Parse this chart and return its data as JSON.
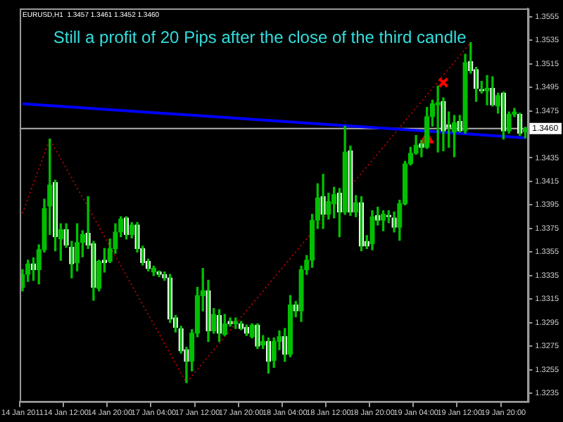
{
  "chart_data": {
    "type": "candlestick",
    "title": "Still a profit of 20 Pips after the close of the third candle",
    "annotations": [
      "EURUSD,H1  1.3457 1.3461 1.3452 1.3460"
    ],
    "categories": [
      "14 Jan 2011",
      null,
      null,
      null,
      null,
      null,
      null,
      null,
      "14 Jan 12:00",
      null,
      null,
      null,
      null,
      null,
      null,
      null,
      "14 Jan 20:00",
      null,
      null,
      null,
      null,
      null,
      null,
      null,
      "17 Jan 04:00",
      null,
      null,
      null,
      null,
      null,
      null,
      null,
      "17 Jan 12:00",
      null,
      null,
      null,
      null,
      null,
      null,
      null,
      "17 Jan 20:00",
      null,
      null,
      null,
      null,
      null,
      null,
      null,
      "18 Jan 04:00",
      null,
      null,
      null,
      null,
      null,
      null,
      null,
      "18 Jan 12:00",
      null,
      null,
      null,
      null,
      null,
      null,
      null,
      "18 Jan 20:00",
      null,
      null,
      null,
      null,
      null,
      null,
      null,
      "19 Jan 04:00",
      null,
      null,
      null,
      null,
      null,
      null,
      null,
      "19 Jan 12:00",
      null,
      null,
      null,
      null,
      null,
      null,
      null,
      "19 Jan 20:00",
      null,
      null,
      null,
      null
    ],
    "ohlc": [
      [
        1.3325,
        1.334,
        1.3322,
        1.3336
      ],
      [
        1.3336,
        1.3348,
        1.333,
        1.3345
      ],
      [
        1.3345,
        1.335,
        1.3331,
        1.334
      ],
      [
        1.334,
        1.3361,
        1.3328,
        1.3357
      ],
      [
        1.3357,
        1.34,
        1.3355,
        1.3392
      ],
      [
        1.3394,
        1.3451,
        1.337,
        1.3412
      ],
      [
        1.3414,
        1.3416,
        1.3356,
        1.3368
      ],
      [
        1.3366,
        1.3379,
        1.3348,
        1.3374
      ],
      [
        1.3374,
        1.3379,
        1.3359,
        1.3361
      ],
      [
        1.3359,
        1.3364,
        1.3333,
        1.3345
      ],
      [
        1.3346,
        1.3379,
        1.3339,
        1.3363
      ],
      [
        1.3363,
        1.3373,
        1.3351,
        1.337
      ],
      [
        1.3371,
        1.3402,
        1.3358,
        1.3361
      ],
      [
        1.3362,
        1.3364,
        1.3314,
        1.3325
      ],
      [
        1.3324,
        1.3348,
        1.3322,
        1.3347
      ],
      [
        1.3348,
        1.3358,
        1.3338,
        1.3346
      ],
      [
        1.3347,
        1.3366,
        1.3346,
        1.3358
      ],
      [
        1.3358,
        1.3379,
        1.3354,
        1.3372
      ],
      [
        1.3372,
        1.3385,
        1.3368,
        1.3383
      ],
      [
        1.3384,
        1.3385,
        1.3366,
        1.337
      ],
      [
        1.337,
        1.338,
        1.3367,
        1.3378
      ],
      [
        1.3378,
        1.338,
        1.3355,
        1.3358
      ],
      [
        1.3358,
        1.336,
        1.3344,
        1.3346
      ],
      [
        1.3347,
        1.3349,
        1.3339,
        1.3341
      ],
      [
        1.3338,
        1.3343,
        1.3335,
        1.3341
      ],
      [
        1.3338,
        1.3339,
        1.3334,
        1.3336
      ],
      [
        1.3336,
        1.3338,
        1.3331,
        1.3333
      ],
      [
        1.3333,
        1.3336,
        1.3295,
        1.3298
      ],
      [
        1.3299,
        1.3301,
        1.3287,
        1.3291
      ],
      [
        1.329,
        1.3292,
        1.3269,
        1.3271
      ],
      [
        1.3272,
        1.3274,
        1.3244,
        1.3262
      ],
      [
        1.3262,
        1.3289,
        1.3254,
        1.3286
      ],
      [
        1.3286,
        1.3325,
        1.3283,
        1.3318
      ],
      [
        1.3318,
        1.3341,
        1.3305,
        1.3322
      ],
      [
        1.3322,
        1.3331,
        1.3279,
        1.3288
      ],
      [
        1.3288,
        1.3307,
        1.3286,
        1.3302
      ],
      [
        1.3301,
        1.3306,
        1.3279,
        1.3286
      ],
      [
        1.3285,
        1.3302,
        1.3284,
        1.3294
      ],
      [
        1.3296,
        1.3299,
        1.3292,
        1.3294
      ],
      [
        1.3294,
        1.3299,
        1.329,
        1.3296
      ],
      [
        1.3294,
        1.3296,
        1.3289,
        1.329
      ],
      [
        1.3291,
        1.3293,
        1.3284,
        1.3286
      ],
      [
        1.3283,
        1.3294,
        1.3282,
        1.3293
      ],
      [
        1.3293,
        1.3294,
        1.3273,
        1.3275
      ],
      [
        1.3276,
        1.3284,
        1.3273,
        1.3279
      ],
      [
        1.3279,
        1.3282,
        1.3252,
        1.3262
      ],
      [
        1.3263,
        1.3282,
        1.3257,
        1.3279
      ],
      [
        1.3279,
        1.3288,
        1.3272,
        1.3283
      ],
      [
        1.3283,
        1.329,
        1.3262,
        1.3268
      ],
      [
        1.3268,
        1.3318,
        1.3266,
        1.331
      ],
      [
        1.331,
        1.3313,
        1.33,
        1.3305
      ],
      [
        1.3305,
        1.3343,
        1.3296,
        1.334
      ],
      [
        1.334,
        1.3352,
        1.3336,
        1.3348
      ],
      [
        1.3348,
        1.3387,
        1.3342,
        1.3382
      ],
      [
        1.3382,
        1.3413,
        1.3375,
        1.3401
      ],
      [
        1.3402,
        1.3421,
        1.3375,
        1.3387
      ],
      [
        1.3387,
        1.3405,
        1.3383,
        1.3398
      ],
      [
        1.3396,
        1.341,
        1.3384,
        1.3404
      ],
      [
        1.3405,
        1.3409,
        1.3368,
        1.3389
      ],
      [
        1.3389,
        1.3462,
        1.3387,
        1.344
      ],
      [
        1.3441,
        1.3445,
        1.3386,
        1.3389
      ],
      [
        1.3389,
        1.3403,
        1.3385,
        1.3397
      ],
      [
        1.3397,
        1.3402,
        1.3356,
        1.336
      ],
      [
        1.3364,
        1.3369,
        1.3358,
        1.336
      ],
      [
        1.3362,
        1.339,
        1.3357,
        1.3385
      ],
      [
        1.3386,
        1.3393,
        1.3378,
        1.3382
      ],
      [
        1.3382,
        1.339,
        1.3373,
        1.3387
      ],
      [
        1.3386,
        1.339,
        1.338,
        1.3385
      ],
      [
        1.3384,
        1.3389,
        1.3372,
        1.3376
      ],
      [
        1.3376,
        1.3399,
        1.3365,
        1.3396
      ],
      [
        1.3396,
        1.3432,
        1.3395,
        1.343
      ],
      [
        1.343,
        1.3444,
        1.3429,
        1.3439
      ],
      [
        1.3439,
        1.3454,
        1.3438,
        1.3446
      ],
      [
        1.3447,
        1.345,
        1.3436,
        1.3444
      ],
      [
        1.3444,
        1.3478,
        1.3443,
        1.347
      ],
      [
        1.347,
        1.3484,
        1.3462,
        1.3481
      ],
      [
        1.348,
        1.3496,
        1.344,
        1.3482
      ],
      [
        1.3483,
        1.3486,
        1.3441,
        1.3458
      ],
      [
        1.3463,
        1.3474,
        1.3444,
        1.3461
      ],
      [
        1.3457,
        1.3471,
        1.3436,
        1.3465
      ],
      [
        1.3466,
        1.3471,
        1.3457,
        1.3458
      ],
      [
        1.3458,
        1.3523,
        1.3456,
        1.3516
      ],
      [
        1.3517,
        1.3533,
        1.3507,
        1.3509
      ],
      [
        1.351,
        1.3512,
        1.3483,
        1.3494
      ],
      [
        1.3493,
        1.35,
        1.349,
        1.3492
      ],
      [
        1.3492,
        1.3505,
        1.348,
        1.3494
      ],
      [
        1.3494,
        1.3504,
        1.3479,
        1.348
      ],
      [
        1.3479,
        1.349,
        1.3473,
        1.3488
      ],
      [
        1.349,
        1.3491,
        1.3451,
        1.3458
      ],
      [
        1.3458,
        1.3474,
        1.3456,
        1.3472
      ],
      [
        1.3472,
        1.3477,
        1.347,
        1.3474
      ],
      [
        1.3472,
        1.3473,
        1.3454,
        1.3456
      ],
      [
        1.3457,
        1.3461,
        1.3452,
        1.346
      ]
    ],
    "color": "#00c000",
    "colors": [
      "#00c000",
      "#00c000",
      "#ffffff",
      "#00c000",
      "#00c000",
      "#00c000",
      "#ffffff",
      "#00c000",
      "#ffffff",
      "#ffffff",
      "#00c000",
      "#00c000",
      "#ffffff",
      "#ffffff",
      "#00c000",
      "#ffffff",
      "#00c000",
      "#00c000",
      "#00c000",
      "#ffffff",
      "#00c000",
      "#ffffff",
      "#ffffff",
      "#ffffff",
      "#00c000",
      "#ffffff",
      "#ffffff",
      "#ffffff",
      "#ffffff",
      "#ffffff",
      "#ffffff",
      "#00c000",
      "#00c000",
      "#00c000",
      "#ffffff",
      "#00c000",
      "#ffffff",
      "#00c000",
      "#ffffff",
      "#00c000",
      "#ffffff",
      "#ffffff",
      "#00c000",
      "#ffffff",
      "#00c000",
      "#ffffff",
      "#00c000",
      "#00c000",
      "#ffffff",
      "#00c000",
      "#ffffff",
      "#00c000",
      "#00c000",
      "#00c000",
      "#00c000",
      "#ffffff",
      "#00c000",
      "#00c000",
      "#ffffff",
      "#00c000",
      "#ffffff",
      "#00c000",
      "#ffffff",
      "#ffffff",
      "#00c000",
      "#ffffff",
      "#00c000",
      "#ffffff",
      "#ffffff",
      "#00c000",
      "#00c000",
      "#00c000",
      "#00c000",
      "#ffffff",
      "#00c000",
      "#00c000",
      "#00c000",
      "#ffffff",
      "#ffffff",
      "#00c000",
      "#ffffff",
      "#00c000",
      "#ffffff",
      "#ffffff",
      "#ffffff",
      "#00c000",
      "#ffffff",
      "#00c000",
      "#ffffff",
      "#00c000",
      "#00c000",
      "#ffffff",
      "#00c000"
    ],
    "series": [
      {
        "type": "line",
        "color": "#0000ff",
        "line_style": "solid",
        "values": [
          1.3481,
          null,
          null,
          null,
          null,
          null,
          null,
          null,
          null,
          null,
          null,
          null,
          null,
          null,
          null,
          null,
          null,
          null,
          null,
          null,
          null,
          null,
          null,
          null,
          null,
          null,
          null,
          null,
          null,
          null,
          null,
          null,
          null,
          null,
          null,
          null,
          null,
          null,
          null,
          null,
          null,
          null,
          null,
          null,
          null,
          null,
          null,
          null,
          null,
          null,
          null,
          null,
          null,
          null,
          null,
          null,
          null,
          null,
          null,
          null,
          null,
          null,
          null,
          null,
          null,
          null,
          null,
          null,
          null,
          null,
          null,
          null,
          null,
          null,
          null,
          null,
          null,
          null,
          null,
          null,
          null,
          null,
          null,
          null,
          null,
          null,
          null,
          null,
          null,
          null,
          null,
          null,
          1.3452
        ]
      },
      {
        "type": "line",
        "color": "#b00000",
        "line_style": "dotted",
        "values": [
          1.3388,
          null,
          null,
          null,
          null,
          1.3451,
          null,
          null,
          null,
          null,
          null,
          null,
          null,
          null,
          null,
          null,
          null,
          null,
          null,
          null,
          null,
          null,
          null,
          null,
          null,
          null,
          null,
          null,
          null,
          null,
          1.3244,
          null,
          null,
          null,
          null,
          null,
          null,
          null,
          null,
          null,
          null,
          null,
          null,
          null,
          null,
          null,
          null,
          null,
          null,
          null,
          null,
          null,
          null,
          null,
          null,
          null,
          null,
          null,
          null,
          null,
          null,
          null,
          null,
          null,
          null,
          null,
          null,
          null,
          null,
          null,
          null,
          null,
          null,
          null,
          null,
          null,
          null,
          null,
          null,
          null,
          null,
          null,
          1.3533,
          null,
          null,
          null,
          null,
          null,
          null,
          null,
          null,
          null,
          null
        ]
      },
      {
        "type": "scatter",
        "color": "#ff0000",
        "marker": "triangle",
        "values": [
          null,
          null,
          null,
          null,
          null,
          null,
          null,
          null,
          null,
          null,
          null,
          null,
          null,
          null,
          null,
          null,
          null,
          null,
          null,
          null,
          null,
          null,
          null,
          null,
          null,
          null,
          null,
          null,
          null,
          null,
          null,
          null,
          null,
          null,
          null,
          null,
          null,
          null,
          null,
          null,
          null,
          null,
          null,
          null,
          null,
          null,
          null,
          null,
          null,
          null,
          null,
          null,
          null,
          null,
          null,
          null,
          null,
          null,
          null,
          null,
          null,
          null,
          null,
          null,
          null,
          null,
          null,
          null,
          null,
          null,
          null,
          null,
          null,
          null,
          1.3451,
          null,
          null,
          null,
          null,
          null,
          null,
          null,
          null,
          null,
          null,
          null,
          null,
          null,
          null,
          null,
          null,
          null,
          null
        ]
      },
      {
        "type": "scatter",
        "color": "#ff0000",
        "marker": "cross",
        "values": [
          null,
          null,
          null,
          null,
          null,
          null,
          null,
          null,
          null,
          null,
          null,
          null,
          null,
          null,
          null,
          null,
          null,
          null,
          null,
          null,
          null,
          null,
          null,
          null,
          null,
          null,
          null,
          null,
          null,
          null,
          null,
          null,
          null,
          null,
          null,
          null,
          null,
          null,
          null,
          null,
          null,
          null,
          null,
          null,
          null,
          null,
          null,
          null,
          null,
          null,
          null,
          null,
          null,
          null,
          null,
          null,
          null,
          null,
          null,
          null,
          null,
          null,
          null,
          null,
          null,
          null,
          null,
          null,
          null,
          null,
          null,
          null,
          null,
          null,
          null,
          null,
          null,
          1.3499,
          null,
          null,
          null,
          null,
          null,
          null,
          null,
          null,
          null,
          null,
          null,
          null,
          null,
          null,
          null
        ]
      }
    ],
    "ref_lines": [
      {
        "axis": "y",
        "value": 1.346,
        "label": "1.3460",
        "color": "#b0b0b0"
      }
    ],
    "ylim": [
      1.3228,
      1.3562
    ],
    "yticks": [
      1.3555,
      1.3535,
      1.3515,
      1.3495,
      1.3475,
      1.3435,
      1.3415,
      1.3395,
      1.3375,
      1.3355,
      1.3335,
      1.3315,
      1.3295,
      1.3275,
      1.3255,
      1.3235
    ]
  }
}
